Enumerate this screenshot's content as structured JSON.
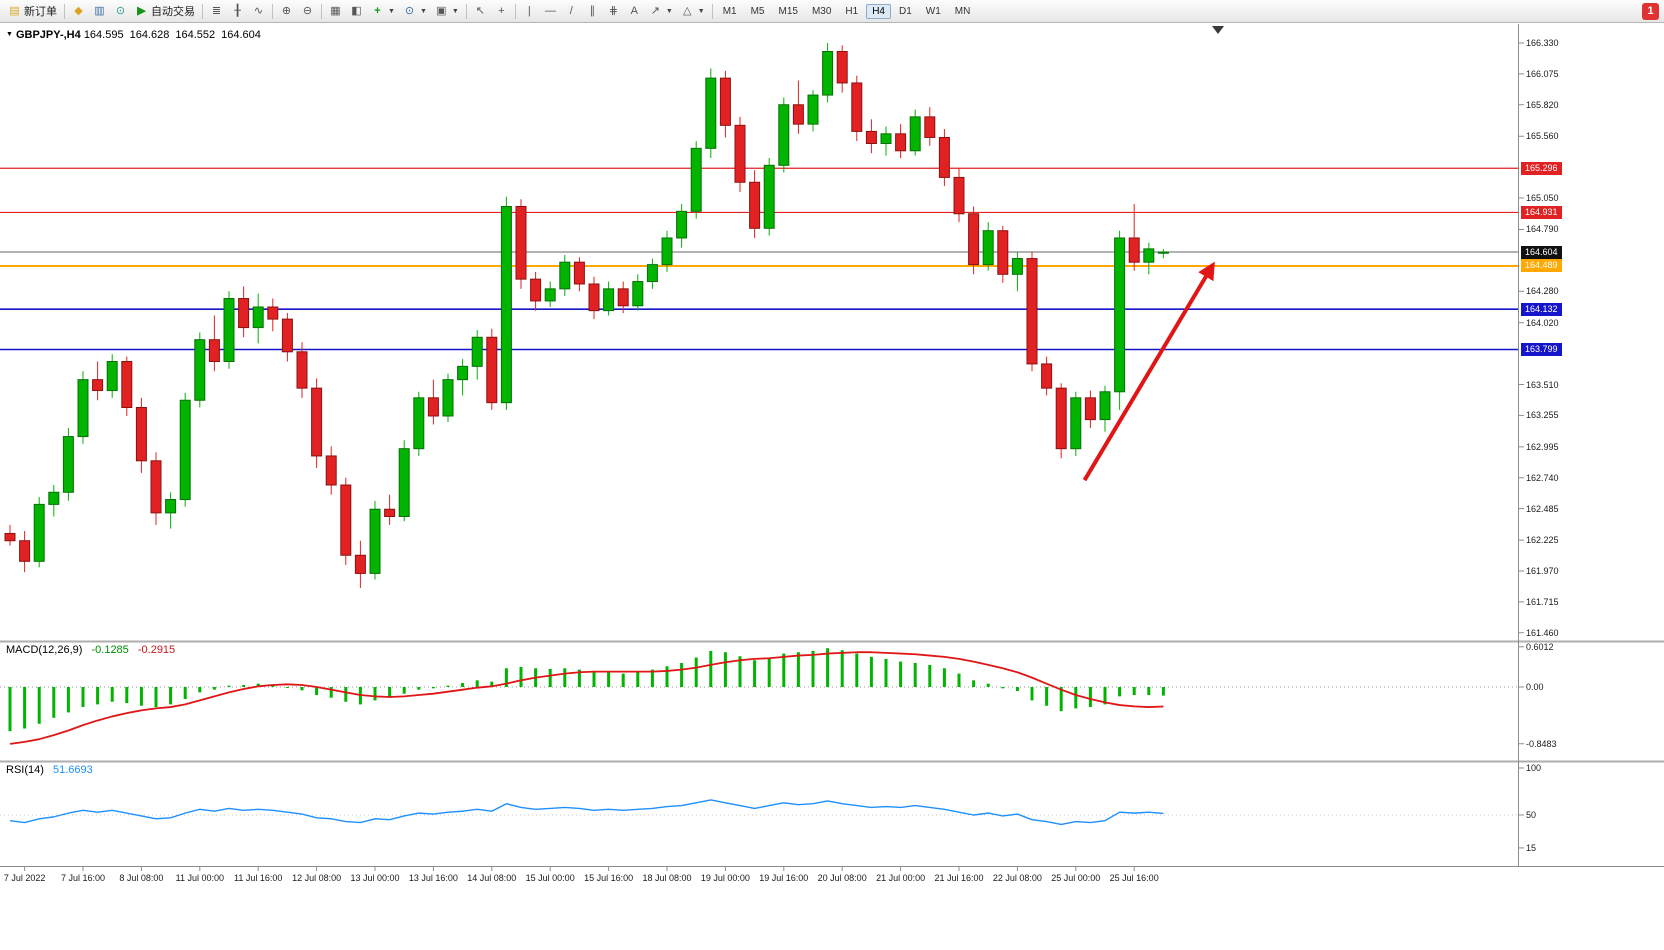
{
  "toolbar": {
    "new_order_label": "新订单",
    "autotrading_label": "自动交易",
    "timeframes": [
      "M1",
      "M5",
      "M15",
      "M30",
      "H1",
      "H4",
      "D1",
      "W1",
      "MN"
    ],
    "active_timeframe": "H4",
    "notification_count": "1"
  },
  "chart": {
    "symbol_line": "GBPJPY-,H4",
    "ohlc": {
      "open": "164.595",
      "high": "164.628",
      "low": "164.552",
      "close": "164.604"
    }
  },
  "macd": {
    "label": "MACD(12,26,9)",
    "value_main": "-0.1285",
    "value_signal": "-0.2915"
  },
  "rsi": {
    "label": "RSI(14)",
    "value": "51.6693"
  },
  "chart_data": {
    "type": "candlestick",
    "title": "GBPJPY- H4 with MACD(12,26,9) and RSI(14)",
    "ylim": [
      161.46,
      166.5
    ],
    "price_tick_labels": [
      "166.330",
      "166.075",
      "165.820",
      "165.560",
      "165.050",
      "164.790",
      "164.280",
      "164.020",
      "163.510",
      "163.255",
      "162.995",
      "162.740",
      "162.485",
      "162.225",
      "161.970",
      "161.715",
      "161.460"
    ],
    "candles": [
      [
        162.28,
        162.35,
        162.18,
        162.22
      ],
      [
        162.22,
        162.3,
        161.96,
        162.05
      ],
      [
        162.05,
        162.58,
        162.0,
        162.52
      ],
      [
        162.52,
        162.68,
        162.42,
        162.62
      ],
      [
        162.62,
        163.15,
        162.55,
        163.08
      ],
      [
        163.08,
        163.62,
        163.02,
        163.55
      ],
      [
        163.55,
        163.7,
        163.38,
        163.46
      ],
      [
        163.46,
        163.76,
        163.4,
        163.7
      ],
      [
        163.7,
        163.74,
        163.25,
        163.32
      ],
      [
        163.32,
        163.4,
        162.78,
        162.88
      ],
      [
        162.88,
        162.95,
        162.35,
        162.45
      ],
      [
        162.45,
        162.62,
        162.32,
        162.56
      ],
      [
        162.56,
        163.44,
        162.5,
        163.38
      ],
      [
        163.38,
        163.94,
        163.32,
        163.88
      ],
      [
        163.88,
        164.08,
        163.62,
        163.7
      ],
      [
        163.7,
        164.28,
        163.64,
        164.22
      ],
      [
        164.22,
        164.32,
        163.9,
        163.98
      ],
      [
        163.98,
        164.26,
        163.85,
        164.15
      ],
      [
        164.15,
        164.22,
        163.95,
        164.05
      ],
      [
        164.05,
        164.1,
        163.7,
        163.78
      ],
      [
        163.78,
        163.86,
        163.4,
        163.48
      ],
      [
        163.48,
        163.56,
        162.82,
        162.92
      ],
      [
        162.92,
        163.0,
        162.6,
        162.68
      ],
      [
        162.68,
        162.74,
        162.02,
        162.1
      ],
      [
        162.1,
        162.22,
        161.83,
        161.95
      ],
      [
        161.95,
        162.55,
        161.9,
        162.48
      ],
      [
        162.48,
        162.6,
        162.35,
        162.42
      ],
      [
        162.42,
        163.05,
        162.38,
        162.98
      ],
      [
        162.98,
        163.45,
        162.92,
        163.4
      ],
      [
        163.4,
        163.55,
        163.18,
        163.25
      ],
      [
        163.25,
        163.6,
        163.2,
        163.55
      ],
      [
        163.55,
        163.72,
        163.42,
        163.66
      ],
      [
        163.66,
        163.96,
        163.55,
        163.9
      ],
      [
        163.9,
        163.97,
        163.3,
        163.36
      ],
      [
        163.36,
        165.06,
        163.3,
        164.98
      ],
      [
        164.98,
        165.04,
        164.3,
        164.38
      ],
      [
        164.38,
        164.44,
        164.12,
        164.2
      ],
      [
        164.2,
        164.36,
        164.15,
        164.3
      ],
      [
        164.3,
        164.58,
        164.24,
        164.52
      ],
      [
        164.52,
        164.56,
        164.28,
        164.34
      ],
      [
        164.34,
        164.4,
        164.05,
        164.12
      ],
      [
        164.12,
        164.36,
        164.08,
        164.3
      ],
      [
        164.3,
        164.36,
        164.1,
        164.16
      ],
      [
        164.16,
        164.42,
        164.12,
        164.36
      ],
      [
        164.36,
        164.55,
        164.3,
        164.5
      ],
      [
        164.5,
        164.78,
        164.44,
        164.72
      ],
      [
        164.72,
        165.0,
        164.64,
        164.94
      ],
      [
        164.94,
        165.52,
        164.88,
        165.46
      ],
      [
        165.46,
        166.12,
        165.38,
        166.04
      ],
      [
        166.04,
        166.1,
        165.55,
        165.65
      ],
      [
        165.65,
        165.72,
        165.1,
        165.18
      ],
      [
        165.18,
        165.28,
        164.72,
        164.8
      ],
      [
        164.8,
        165.38,
        164.74,
        165.32
      ],
      [
        165.32,
        165.88,
        165.26,
        165.82
      ],
      [
        165.82,
        166.02,
        165.58,
        165.66
      ],
      [
        165.66,
        165.94,
        165.6,
        165.9
      ],
      [
        165.9,
        166.33,
        165.84,
        166.26
      ],
      [
        166.26,
        166.31,
        165.92,
        166.0
      ],
      [
        166.0,
        166.06,
        165.52,
        165.6
      ],
      [
        165.6,
        165.7,
        165.42,
        165.5
      ],
      [
        165.5,
        165.64,
        165.4,
        165.58
      ],
      [
        165.58,
        165.66,
        165.38,
        165.44
      ],
      [
        165.44,
        165.78,
        165.4,
        165.72
      ],
      [
        165.72,
        165.8,
        165.48,
        165.55
      ],
      [
        165.55,
        165.62,
        165.15,
        165.22
      ],
      [
        165.22,
        165.3,
        164.85,
        164.92
      ],
      [
        164.92,
        164.98,
        164.42,
        164.5
      ],
      [
        164.5,
        164.85,
        164.45,
        164.78
      ],
      [
        164.78,
        164.82,
        164.35,
        164.42
      ],
      [
        164.42,
        164.6,
        164.28,
        164.55
      ],
      [
        164.55,
        164.6,
        163.62,
        163.68
      ],
      [
        163.68,
        163.74,
        163.42,
        163.48
      ],
      [
        163.48,
        163.52,
        162.9,
        162.98
      ],
      [
        162.98,
        163.45,
        162.92,
        163.4
      ],
      [
        163.4,
        163.46,
        163.15,
        163.22
      ],
      [
        163.22,
        163.5,
        163.12,
        163.45
      ],
      [
        163.45,
        164.78,
        163.3,
        164.72
      ],
      [
        164.72,
        165.0,
        164.45,
        164.52
      ],
      [
        164.52,
        164.68,
        164.42,
        164.63
      ],
      [
        164.595,
        164.628,
        164.552,
        164.604
      ]
    ],
    "lines": [
      {
        "label": "165.296",
        "price": 165.296,
        "color": "#e22222",
        "width": 1.2
      },
      {
        "label": "164.931",
        "price": 164.931,
        "color": "#e22222",
        "width": 1.2
      },
      {
        "label": "164.604",
        "price": 164.604,
        "color": "#666666",
        "width": 1,
        "box": "#111111"
      },
      {
        "label": "164.489",
        "price": 164.489,
        "color": "#ffa800",
        "width": 2
      },
      {
        "label": "164.132",
        "price": 164.132,
        "color": "#1515cc",
        "width": 1.6
      },
      {
        "label": "163.799",
        "price": 163.799,
        "color": "#1515cc",
        "width": 1.6
      }
    ],
    "arrow": {
      "from_candle": 73.6,
      "from_price": 162.72,
      "to_candle": 82.4,
      "to_price": 164.5,
      "color": "#e01515"
    },
    "macd": {
      "histogram": [
        -0.66,
        -0.62,
        -0.55,
        -0.46,
        -0.38,
        -0.3,
        -0.26,
        -0.22,
        -0.24,
        -0.28,
        -0.3,
        -0.26,
        -0.18,
        -0.08,
        -0.04,
        0.02,
        0.03,
        0.05,
        0.04,
        0.0,
        -0.05,
        -0.12,
        -0.16,
        -0.22,
        -0.26,
        -0.2,
        -0.16,
        -0.1,
        -0.04,
        -0.02,
        0.02,
        0.06,
        0.1,
        0.08,
        0.28,
        0.3,
        0.28,
        0.27,
        0.28,
        0.26,
        0.22,
        0.22,
        0.2,
        0.22,
        0.26,
        0.31,
        0.36,
        0.44,
        0.54,
        0.52,
        0.46,
        0.4,
        0.44,
        0.5,
        0.52,
        0.54,
        0.58,
        0.55,
        0.5,
        0.45,
        0.42,
        0.38,
        0.36,
        0.33,
        0.28,
        0.2,
        0.1,
        0.05,
        -0.02,
        -0.06,
        -0.2,
        -0.28,
        -0.36,
        -0.32,
        -0.3,
        -0.26,
        -0.14,
        -0.12,
        -0.12,
        -0.1285
      ],
      "signal": [
        -0.85,
        -0.82,
        -0.78,
        -0.72,
        -0.65,
        -0.57,
        -0.5,
        -0.44,
        -0.39,
        -0.35,
        -0.32,
        -0.3,
        -0.26,
        -0.2,
        -0.14,
        -0.08,
        -0.03,
        0.01,
        0.03,
        0.04,
        0.03,
        0.0,
        -0.04,
        -0.08,
        -0.12,
        -0.14,
        -0.15,
        -0.14,
        -0.12,
        -0.1,
        -0.07,
        -0.04,
        -0.01,
        0.01,
        0.05,
        0.1,
        0.14,
        0.17,
        0.2,
        0.22,
        0.23,
        0.23,
        0.23,
        0.23,
        0.23,
        0.24,
        0.26,
        0.29,
        0.33,
        0.37,
        0.4,
        0.42,
        0.43,
        0.45,
        0.47,
        0.48,
        0.5,
        0.51,
        0.52,
        0.52,
        0.51,
        0.5,
        0.49,
        0.47,
        0.45,
        0.42,
        0.38,
        0.33,
        0.28,
        0.22,
        0.14,
        0.05,
        -0.04,
        -0.12,
        -0.18,
        -0.23,
        -0.27,
        -0.29,
        -0.3,
        -0.2915
      ],
      "axis": [
        {
          "text": "0.6012",
          "value": 0.6012
        },
        {
          "text": "0.00",
          "value": 0
        },
        {
          "text": "-0.8483",
          "value": -0.8483
        }
      ],
      "colors": {
        "histogram": "#00b400",
        "signal": "#e01515"
      }
    },
    "rsi": {
      "values": [
        44,
        42,
        46,
        48,
        52,
        55,
        53,
        55,
        52,
        49,
        46,
        47,
        52,
        56,
        54,
        57,
        55,
        56,
        55,
        53,
        51,
        47,
        46,
        43,
        42,
        46,
        45,
        49,
        52,
        51,
        53,
        54,
        56,
        54,
        62,
        58,
        56,
        57,
        58,
        57,
        55,
        56,
        55,
        56,
        57,
        59,
        60,
        63,
        66,
        63,
        60,
        57,
        60,
        63,
        61,
        62,
        65,
        62,
        60,
        58,
        59,
        58,
        60,
        58,
        56,
        53,
        50,
        52,
        49,
        51,
        45,
        43,
        40,
        43,
        42,
        44,
        53,
        52,
        53,
        51.67
      ],
      "axis": [
        {
          "text": "100",
          "value": 100
        },
        {
          "text": "50",
          "value": 50
        },
        {
          "text": "15",
          "value": 15
        }
      ],
      "color": "#1e90ff"
    },
    "time_labels": [
      "7 Jul 2022",
      "7 Jul 16:00",
      "8 Jul 08:00",
      "11 Jul 00:00",
      "11 Jul 16:00",
      "12 Jul 08:00",
      "13 Jul 00:00",
      "13 Jul 16:00",
      "14 Jul 08:00",
      "15 Jul 00:00",
      "15 Jul 16:00",
      "18 Jul 08:00",
      "19 Jul 00:00",
      "19 Jul 16:00",
      "20 Jul 08:00",
      "21 Jul 00:00",
      "21 Jul 16:00",
      "22 Jul 08:00",
      "25 Jul 00:00",
      "25 Jul 16:00"
    ],
    "label_start_index": 1,
    "label_step": 4,
    "colors": {
      "bull": "#00b400",
      "bull_border": "#067006",
      "bear": "#e22222",
      "bear_border": "#8c1111",
      "background": "#ffffff"
    }
  }
}
